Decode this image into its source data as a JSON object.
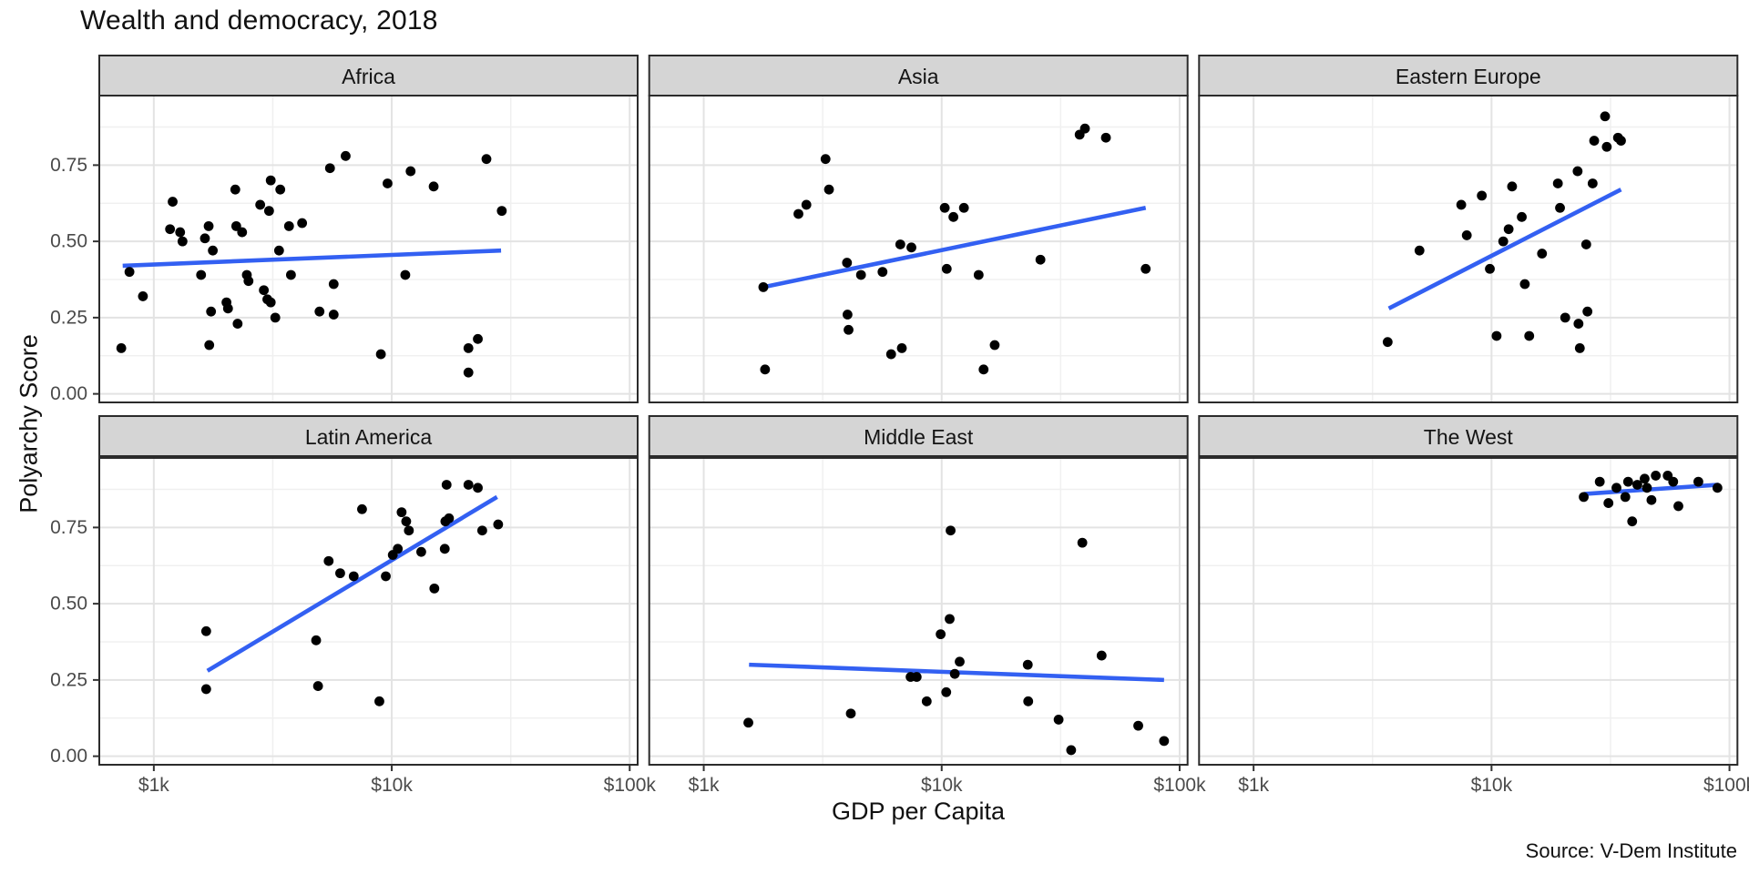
{
  "title": "Wealth and democracy, 2018",
  "axes": {
    "x_label": "GDP per Capita",
    "y_label": "Polyarchy Score"
  },
  "caption": "Source: V-Dem Institute",
  "colors": {
    "point": "#000000",
    "trend": "#3360F2",
    "strip_fill": "#D5D5D5",
    "strip_text": "#141414",
    "panel_border": "#2B2B2B",
    "panel_fill": "#FFFFFF",
    "grid_major": "#E3E3E3",
    "grid_minor": "#F0F0F0",
    "tick_mark": "#333333",
    "tick_label": "#4A4A4A"
  },
  "chart_data": {
    "type": "scatter",
    "title": "Wealth and democracy, 2018",
    "xlabel": "GDP per Capita",
    "ylabel": "Polyarchy Score",
    "x_scale": "log10",
    "x_domain": [
      590,
      108000
    ],
    "y_domain": [
      -0.028,
      0.978
    ],
    "grid": true,
    "legend": "none",
    "x_ticks": [
      {
        "value": 1000,
        "label": "$1k"
      },
      {
        "value": 10000,
        "label": "$10k"
      },
      {
        "value": 100000,
        "label": "$100k"
      }
    ],
    "x_minor": [
      3162,
      31623
    ],
    "y_ticks": [
      {
        "value": 0.0,
        "label": "0.00"
      },
      {
        "value": 0.25,
        "label": "0.25"
      },
      {
        "value": 0.5,
        "label": "0.50"
      },
      {
        "value": 0.75,
        "label": "0.75"
      }
    ],
    "y_minor": [
      0.125,
      0.375,
      0.625,
      0.875
    ],
    "facets": [
      {
        "name": "Africa",
        "trend": {
          "x1": 740,
          "y1": 0.42,
          "x2": 28800,
          "y2": 0.47
        },
        "points": [
          [
            6400,
            0.78
          ],
          [
            5500,
            0.74
          ],
          [
            25000,
            0.77
          ],
          [
            12000,
            0.73
          ],
          [
            9600,
            0.69
          ],
          [
            15000,
            0.68
          ],
          [
            3100,
            0.7
          ],
          [
            3400,
            0.67
          ],
          [
            2200,
            0.67
          ],
          [
            1200,
            0.63
          ],
          [
            29000,
            0.6
          ],
          [
            2800,
            0.62
          ],
          [
            3050,
            0.6
          ],
          [
            3700,
            0.55
          ],
          [
            4200,
            0.56
          ],
          [
            1700,
            0.55
          ],
          [
            2220,
            0.55
          ],
          [
            2350,
            0.53
          ],
          [
            1170,
            0.54
          ],
          [
            1290,
            0.53
          ],
          [
            1320,
            0.5
          ],
          [
            1640,
            0.51
          ],
          [
            1770,
            0.47
          ],
          [
            3360,
            0.47
          ],
          [
            790,
            0.4
          ],
          [
            1580,
            0.39
          ],
          [
            2460,
            0.39
          ],
          [
            2500,
            0.37
          ],
          [
            3770,
            0.39
          ],
          [
            11400,
            0.39
          ],
          [
            5700,
            0.36
          ],
          [
            2900,
            0.34
          ],
          [
            900,
            0.32
          ],
          [
            3000,
            0.31
          ],
          [
            3100,
            0.3
          ],
          [
            2020,
            0.3
          ],
          [
            2050,
            0.28
          ],
          [
            1740,
            0.27
          ],
          [
            4970,
            0.27
          ],
          [
            5700,
            0.26
          ],
          [
            2250,
            0.23
          ],
          [
            3240,
            0.25
          ],
          [
            730,
            0.15
          ],
          [
            1710,
            0.16
          ],
          [
            9000,
            0.13
          ],
          [
            21000,
            0.15
          ],
          [
            23000,
            0.18
          ],
          [
            21000,
            0.07
          ]
        ]
      },
      {
        "name": "Asia",
        "trend": {
          "x1": 1780,
          "y1": 0.35,
          "x2": 72000,
          "y2": 0.61
        },
        "points": [
          [
            38000,
            0.85
          ],
          [
            40000,
            0.87
          ],
          [
            49000,
            0.84
          ],
          [
            3250,
            0.77
          ],
          [
            3360,
            0.67
          ],
          [
            2700,
            0.62
          ],
          [
            2500,
            0.59
          ],
          [
            10300,
            0.61
          ],
          [
            12400,
            0.61
          ],
          [
            11200,
            0.58
          ],
          [
            6700,
            0.49
          ],
          [
            7460,
            0.48
          ],
          [
            4000,
            0.43
          ],
          [
            4580,
            0.39
          ],
          [
            5640,
            0.4
          ],
          [
            10500,
            0.41
          ],
          [
            14300,
            0.39
          ],
          [
            26000,
            0.44
          ],
          [
            72000,
            0.41
          ],
          [
            1780,
            0.35
          ],
          [
            4020,
            0.26
          ],
          [
            4060,
            0.21
          ],
          [
            6800,
            0.15
          ],
          [
            6130,
            0.13
          ],
          [
            16700,
            0.16
          ],
          [
            1810,
            0.08
          ],
          [
            15000,
            0.08
          ]
        ]
      },
      {
        "name": "Eastern Europe",
        "trend": {
          "x1": 3700,
          "y1": 0.28,
          "x2": 35000,
          "y2": 0.67
        },
        "points": [
          [
            30000,
            0.91
          ],
          [
            27000,
            0.83
          ],
          [
            30500,
            0.81
          ],
          [
            34000,
            0.84
          ],
          [
            35000,
            0.83
          ],
          [
            23000,
            0.73
          ],
          [
            19000,
            0.69
          ],
          [
            26600,
            0.69
          ],
          [
            12200,
            0.68
          ],
          [
            9100,
            0.65
          ],
          [
            7460,
            0.62
          ],
          [
            19400,
            0.61
          ],
          [
            13400,
            0.58
          ],
          [
            7870,
            0.52
          ],
          [
            11800,
            0.54
          ],
          [
            11200,
            0.5
          ],
          [
            4980,
            0.47
          ],
          [
            16300,
            0.46
          ],
          [
            25000,
            0.49
          ],
          [
            9840,
            0.41
          ],
          [
            13800,
            0.36
          ],
          [
            20400,
            0.25
          ],
          [
            23200,
            0.23
          ],
          [
            25300,
            0.27
          ],
          [
            10500,
            0.19
          ],
          [
            14400,
            0.19
          ],
          [
            3660,
            0.17
          ],
          [
            23500,
            0.15
          ]
        ]
      },
      {
        "name": "Latin America",
        "trend": {
          "x1": 1680,
          "y1": 0.28,
          "x2": 27700,
          "y2": 0.85
        },
        "points": [
          [
            17000,
            0.89
          ],
          [
            21000,
            0.89
          ],
          [
            23000,
            0.88
          ],
          [
            7500,
            0.81
          ],
          [
            11000,
            0.8
          ],
          [
            11500,
            0.77
          ],
          [
            11800,
            0.74
          ],
          [
            16800,
            0.77
          ],
          [
            17400,
            0.78
          ],
          [
            24000,
            0.74
          ],
          [
            28000,
            0.76
          ],
          [
            10600,
            0.68
          ],
          [
            10100,
            0.66
          ],
          [
            13300,
            0.67
          ],
          [
            16700,
            0.68
          ],
          [
            5430,
            0.64
          ],
          [
            6070,
            0.6
          ],
          [
            6920,
            0.59
          ],
          [
            9440,
            0.59
          ],
          [
            15100,
            0.55
          ],
          [
            1660,
            0.41
          ],
          [
            4810,
            0.38
          ],
          [
            4900,
            0.23
          ],
          [
            1660,
            0.22
          ],
          [
            8870,
            0.18
          ]
        ]
      },
      {
        "name": "Middle East",
        "trend": {
          "x1": 1550,
          "y1": 0.3,
          "x2": 86000,
          "y2": 0.25
        },
        "points": [
          [
            10900,
            0.74
          ],
          [
            39000,
            0.7
          ],
          [
            10800,
            0.45
          ],
          [
            9900,
            0.4
          ],
          [
            11900,
            0.31
          ],
          [
            47000,
            0.33
          ],
          [
            23000,
            0.3
          ],
          [
            11350,
            0.27
          ],
          [
            7400,
            0.26
          ],
          [
            7850,
            0.26
          ],
          [
            10450,
            0.21
          ],
          [
            8650,
            0.18
          ],
          [
            23100,
            0.18
          ],
          [
            4150,
            0.14
          ],
          [
            1540,
            0.11
          ],
          [
            31000,
            0.12
          ],
          [
            67000,
            0.1
          ],
          [
            86000,
            0.05
          ],
          [
            35000,
            0.02
          ]
        ]
      },
      {
        "name": "The West",
        "trend": {
          "x1": 24500,
          "y1": 0.86,
          "x2": 90000,
          "y2": 0.89
        },
        "points": [
          [
            24400,
            0.85
          ],
          [
            28500,
            0.9
          ],
          [
            31000,
            0.83
          ],
          [
            33500,
            0.88
          ],
          [
            37500,
            0.9
          ],
          [
            36500,
            0.85
          ],
          [
            39000,
            0.77
          ],
          [
            41000,
            0.89
          ],
          [
            44000,
            0.91
          ],
          [
            45000,
            0.88
          ],
          [
            47000,
            0.84
          ],
          [
            49000,
            0.92
          ],
          [
            55000,
            0.92
          ],
          [
            58000,
            0.9
          ],
          [
            61000,
            0.82
          ],
          [
            74000,
            0.9
          ],
          [
            89000,
            0.88
          ]
        ]
      }
    ]
  }
}
